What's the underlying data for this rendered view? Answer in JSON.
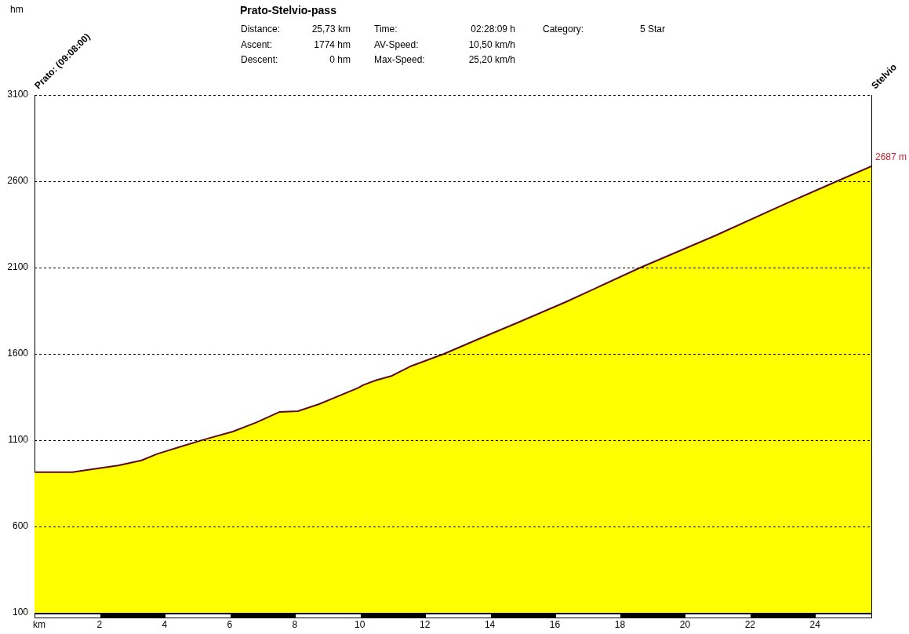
{
  "chart_data": {
    "type": "area",
    "title": "Prato-Stelvio-pass",
    "xlabel": "km",
    "x": [
      0,
      1.17,
      1.61,
      2.57,
      3.29,
      3.78,
      4.57,
      5.22,
      6.1,
      6.82,
      7.54,
      8.1,
      8.75,
      9.95,
      10.11,
      10.51,
      10.99,
      11.55,
      12.59,
      13.63,
      14.88,
      16.34,
      18.63,
      20.92,
      23.0,
      24.67,
      25.73
    ],
    "values": [
      915,
      915,
      927,
      953,
      983,
      1021,
      1067,
      1104,
      1150,
      1203,
      1264,
      1268,
      1309,
      1403,
      1420,
      1448,
      1473,
      1527,
      1600,
      1684,
      1783,
      1901,
      2100,
      2284,
      2462,
      2600,
      2687
    ],
    "color": "#ffff00",
    "xlim": [
      0,
      25.73
    ],
    "xticks": [
      2,
      4,
      6,
      8,
      10,
      12,
      14,
      16,
      18,
      20,
      22,
      24
    ],
    "ylim": [
      100,
      3100
    ],
    "yticks": [
      100,
      600,
      1100,
      1600,
      2100,
      2600,
      3100
    ],
    "grid": "y",
    "annotations": [
      "hm",
      "Prato: (09:08:00)",
      "Stelvio",
      "Distance:",
      "25,73 km",
      "Ascent:",
      "1774 hm",
      "Descent:",
      "0 hm",
      "Time:",
      "02:28:09 h",
      "AV-Speed:",
      "10,50 km/h",
      "Max-Speed:",
      "25,20 km/h",
      "Category:",
      "5 Star",
      {
        "text": "2687 m",
        "x": 25.73,
        "y": 2687
      }
    ]
  }
}
